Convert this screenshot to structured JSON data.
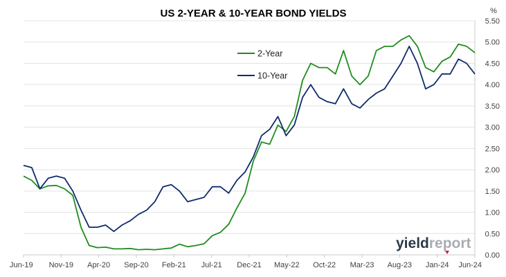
{
  "colors": {
    "two_year": "#1e8c1e",
    "ten_year": "#0f2a6b",
    "grid": "#e3e3e3",
    "axis": "#c8c8c8",
    "logo_accent": "#d11f2a"
  },
  "logo": {
    "part1": "yield",
    "part2": "report",
    "icon": "red-triangle-icon"
  },
  "chart_data": {
    "type": "line",
    "title": "US 2-YEAR & 10-YEAR BOND YIELDS",
    "ylabel": "%",
    "xlabel": "",
    "ylim": [
      0,
      5.5
    ],
    "yticks": [
      "0.00",
      "0.50",
      "1.00",
      "1.50",
      "2.00",
      "2.50",
      "3.00",
      "3.50",
      "4.00",
      "4.50",
      "5.00",
      "5.50"
    ],
    "xticks": [
      "Jun-19",
      "Nov-19",
      "Apr-20",
      "Sep-20",
      "Feb-21",
      "Jul-21",
      "Dec-21",
      "May-22",
      "Oct-22",
      "Mar-23",
      "Aug-23",
      "Jan-24",
      "Jun-24"
    ],
    "grid": "horizontal",
    "legend_position": "top-center",
    "x": [
      "Jun-19",
      "Aug-19",
      "Oct-19",
      "Nov-19",
      "Dec-19",
      "Jan-20",
      "Feb-20",
      "Mar-20",
      "Apr-20",
      "May-20",
      "Jun-20",
      "Aug-20",
      "Sep-20",
      "Oct-20",
      "Dec-20",
      "Jan-21",
      "Feb-21",
      "Mar-21",
      "Apr-21",
      "Jun-21",
      "Jul-21",
      "Aug-21",
      "Sep-21",
      "Oct-21",
      "Nov-21",
      "Dec-21",
      "Jan-22",
      "Feb-22",
      "Mar-22",
      "Apr-22",
      "May-22",
      "Jun-22",
      "Jul-22",
      "Aug-22",
      "Sep-22",
      "Oct-22",
      "Nov-22",
      "Dec-22",
      "Jan-23",
      "Feb-23",
      "Mar-23",
      "Apr-23",
      "May-23",
      "Jun-23",
      "Jul-23",
      "Aug-23",
      "Sep-23",
      "Oct-23",
      "Nov-23",
      "Dec-23",
      "Jan-24",
      "Feb-24",
      "Mar-24",
      "Apr-24",
      "May-24",
      "Jun-24"
    ],
    "series": [
      {
        "name": "2-Year",
        "values": [
          1.85,
          1.75,
          1.55,
          1.62,
          1.63,
          1.55,
          1.4,
          0.65,
          0.22,
          0.17,
          0.18,
          0.14,
          0.14,
          0.15,
          0.12,
          0.13,
          0.12,
          0.14,
          0.16,
          0.25,
          0.19,
          0.22,
          0.26,
          0.45,
          0.53,
          0.72,
          1.1,
          1.45,
          2.2,
          2.65,
          2.6,
          3.05,
          2.9,
          3.25,
          4.1,
          4.5,
          4.4,
          4.4,
          4.25,
          4.8,
          4.2,
          4.0,
          4.2,
          4.8,
          4.9,
          4.9,
          5.05,
          5.15,
          4.9,
          4.4,
          4.3,
          4.55,
          4.65,
          4.95,
          4.9,
          4.75
        ]
      },
      {
        "name": "10-Year",
        "values": [
          2.1,
          2.05,
          1.55,
          1.8,
          1.85,
          1.8,
          1.5,
          1.05,
          0.65,
          0.65,
          0.7,
          0.55,
          0.7,
          0.8,
          0.95,
          1.05,
          1.25,
          1.6,
          1.65,
          1.5,
          1.25,
          1.3,
          1.35,
          1.6,
          1.6,
          1.45,
          1.75,
          1.95,
          2.3,
          2.8,
          2.95,
          3.25,
          2.8,
          3.05,
          3.7,
          4.0,
          3.7,
          3.6,
          3.55,
          3.9,
          3.55,
          3.45,
          3.65,
          3.8,
          3.9,
          4.2,
          4.5,
          4.9,
          4.5,
          3.9,
          4.0,
          4.25,
          4.25,
          4.6,
          4.5,
          4.25
        ]
      }
    ]
  }
}
